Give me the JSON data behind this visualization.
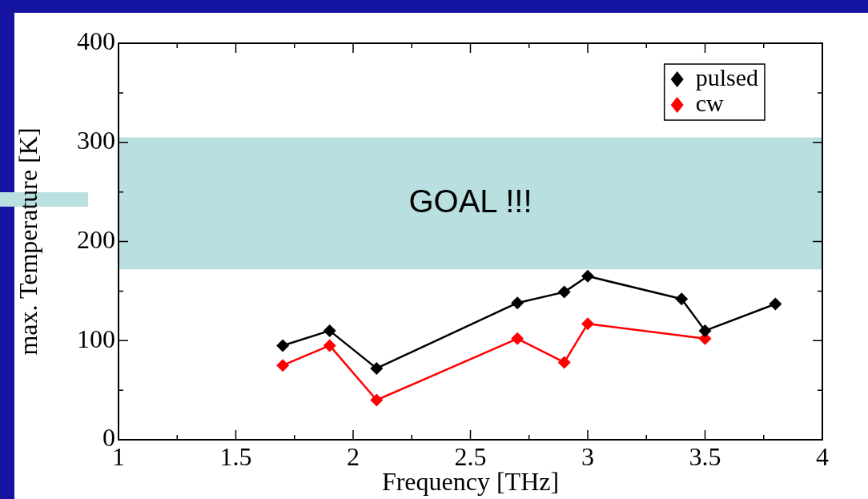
{
  "chart_data": {
    "type": "line",
    "xlabel": "Frequency [THz]",
    "ylabel": "max. Temperature [K]",
    "xlim": [
      1,
      4
    ],
    "xticks": [
      1,
      1.5,
      2,
      2.5,
      3,
      3.5,
      4
    ],
    "ylim": [
      0,
      400
    ],
    "yticks": [
      0,
      100,
      200,
      300,
      400
    ],
    "grid": false,
    "legend": "top right",
    "marker": "diamond",
    "line_style": "solid",
    "bands": [
      {
        "axis": "y",
        "from": 172,
        "to": 305,
        "label": "GOAL !!!",
        "color": "#b9dfe1"
      }
    ],
    "series": [
      {
        "name": "pulsed",
        "color": "#000000",
        "x": [
          1.7,
          1.9,
          2.1,
          2.7,
          2.9,
          3.0,
          3.4,
          3.5,
          3.8
        ],
        "values": [
          95,
          110,
          72,
          138,
          149,
          165,
          142,
          110,
          137
        ]
      },
      {
        "name": "cw",
        "color": "#ff0000",
        "x": [
          1.7,
          1.9,
          2.1,
          2.7,
          2.9,
          3.0,
          3.5
        ],
        "values": [
          75,
          95,
          40,
          102,
          78,
          117,
          102
        ]
      }
    ]
  }
}
